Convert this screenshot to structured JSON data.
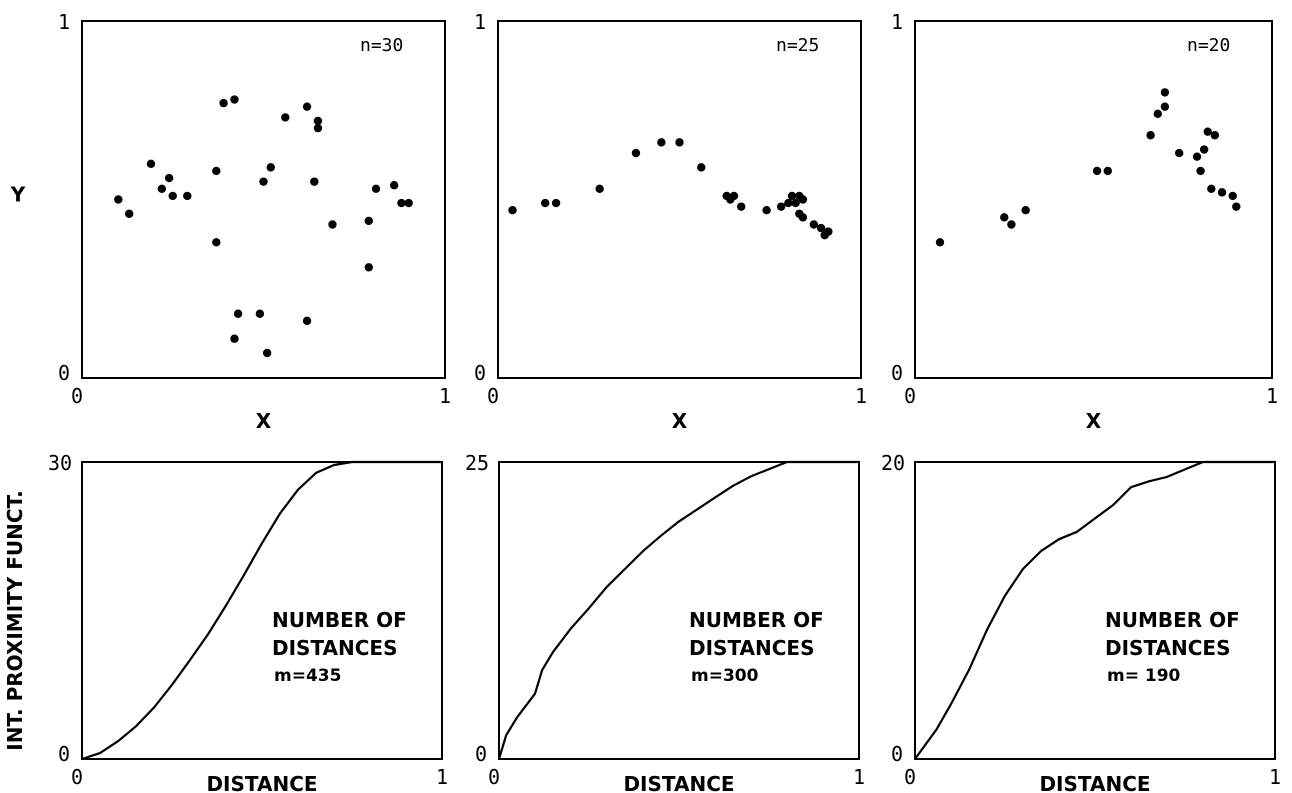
{
  "chart_data": [
    {
      "type": "scatter",
      "annotation": "n=30",
      "xlabel": "X",
      "ylabel": "Y",
      "xlim": [
        0,
        1
      ],
      "ylim": [
        0,
        1
      ],
      "x_ticks": [
        "0",
        "1"
      ],
      "y_ticks": [
        "0",
        "1"
      ],
      "points": [
        [
          0.1,
          0.5
        ],
        [
          0.13,
          0.46
        ],
        [
          0.19,
          0.6
        ],
        [
          0.22,
          0.53
        ],
        [
          0.24,
          0.56
        ],
        [
          0.25,
          0.51
        ],
        [
          0.29,
          0.51
        ],
        [
          0.37,
          0.58
        ],
        [
          0.39,
          0.77
        ],
        [
          0.42,
          0.78
        ],
        [
          0.37,
          0.38
        ],
        [
          0.43,
          0.18
        ],
        [
          0.42,
          0.11
        ],
        [
          0.49,
          0.18
        ],
        [
          0.51,
          0.07
        ],
        [
          0.5,
          0.55
        ],
        [
          0.52,
          0.59
        ],
        [
          0.56,
          0.73
        ],
        [
          0.62,
          0.76
        ],
        [
          0.64,
          0.55
        ],
        [
          0.65,
          0.7
        ],
        [
          0.65,
          0.72
        ],
        [
          0.69,
          0.43
        ],
        [
          0.62,
          0.16
        ],
        [
          0.79,
          0.44
        ],
        [
          0.79,
          0.31
        ],
        [
          0.81,
          0.53
        ],
        [
          0.86,
          0.54
        ],
        [
          0.88,
          0.49
        ],
        [
          0.9,
          0.49
        ]
      ]
    },
    {
      "type": "scatter",
      "annotation": "n=25",
      "xlabel": "X",
      "ylabel": "",
      "xlim": [
        0,
        1
      ],
      "ylim": [
        0,
        1
      ],
      "x_ticks": [
        "0",
        "1"
      ],
      "y_ticks": [
        "0",
        "1"
      ],
      "points": [
        [
          0.04,
          0.47
        ],
        [
          0.13,
          0.49
        ],
        [
          0.16,
          0.49
        ],
        [
          0.28,
          0.53
        ],
        [
          0.38,
          0.63
        ],
        [
          0.45,
          0.66
        ],
        [
          0.5,
          0.66
        ],
        [
          0.56,
          0.59
        ],
        [
          0.63,
          0.51
        ],
        [
          0.64,
          0.5
        ],
        [
          0.65,
          0.51
        ],
        [
          0.67,
          0.48
        ],
        [
          0.74,
          0.47
        ],
        [
          0.78,
          0.48
        ],
        [
          0.8,
          0.49
        ],
        [
          0.81,
          0.51
        ],
        [
          0.82,
          0.49
        ],
        [
          0.83,
          0.51
        ],
        [
          0.84,
          0.5
        ],
        [
          0.83,
          0.46
        ],
        [
          0.84,
          0.45
        ],
        [
          0.87,
          0.43
        ],
        [
          0.89,
          0.42
        ],
        [
          0.9,
          0.4
        ],
        [
          0.91,
          0.41
        ]
      ]
    },
    {
      "type": "scatter",
      "annotation": "n=20",
      "xlabel": "X",
      "ylabel": "",
      "xlim": [
        0,
        1
      ],
      "ylim": [
        0,
        1
      ],
      "x_ticks": [
        "0",
        "1"
      ],
      "y_ticks": [
        "0",
        "1"
      ],
      "points": [
        [
          0.07,
          0.38
        ],
        [
          0.25,
          0.45
        ],
        [
          0.27,
          0.43
        ],
        [
          0.31,
          0.47
        ],
        [
          0.51,
          0.58
        ],
        [
          0.54,
          0.58
        ],
        [
          0.66,
          0.68
        ],
        [
          0.68,
          0.74
        ],
        [
          0.7,
          0.76
        ],
        [
          0.7,
          0.8
        ],
        [
          0.74,
          0.63
        ],
        [
          0.79,
          0.62
        ],
        [
          0.8,
          0.58
        ],
        [
          0.81,
          0.64
        ],
        [
          0.82,
          0.69
        ],
        [
          0.84,
          0.68
        ],
        [
          0.83,
          0.53
        ],
        [
          0.86,
          0.52
        ],
        [
          0.89,
          0.51
        ],
        [
          0.9,
          0.48
        ]
      ]
    },
    {
      "type": "line",
      "xlabel": "DISTANCE",
      "ylabel": "INT. PROXIMITY FUNCT.",
      "xlim": [
        0,
        1
      ],
      "ylim": [
        0,
        30
      ],
      "x_ticks": [
        "0",
        "1"
      ],
      "y_ticks": [
        "0",
        "30"
      ],
      "annotation_lines": [
        "NUMBER OF",
        "DISTANCES"
      ],
      "m_label": "m=435",
      "x": [
        0,
        0.05,
        0.1,
        0.15,
        0.2,
        0.25,
        0.3,
        0.35,
        0.4,
        0.45,
        0.5,
        0.55,
        0.6,
        0.65,
        0.7,
        0.75,
        0.8
      ],
      "y": [
        0,
        0.6,
        1.8,
        3.3,
        5.2,
        7.5,
        10.0,
        12.6,
        15.5,
        18.6,
        21.8,
        24.8,
        27.2,
        28.9,
        29.7,
        30.0,
        30.0
      ]
    },
    {
      "type": "line",
      "xlabel": "DISTANCE",
      "ylabel": "",
      "xlim": [
        0,
        1
      ],
      "ylim": [
        0,
        25
      ],
      "x_ticks": [
        "0",
        "1"
      ],
      "y_ticks": [
        "0",
        "25"
      ],
      "annotation_lines": [
        "NUMBER OF",
        "DISTANCES"
      ],
      "m_label": "m=300",
      "x": [
        0,
        0.02,
        0.05,
        0.1,
        0.12,
        0.15,
        0.2,
        0.25,
        0.3,
        0.35,
        0.4,
        0.45,
        0.5,
        0.55,
        0.6,
        0.65,
        0.7,
        0.75,
        0.8,
        0.85
      ],
      "y": [
        0,
        2.0,
        3.5,
        5.5,
        7.5,
        9.0,
        11.0,
        12.7,
        14.5,
        16.0,
        17.5,
        18.8,
        20.0,
        21.0,
        22.0,
        23.0,
        23.8,
        24.4,
        25.0,
        25.0
      ]
    },
    {
      "type": "line",
      "xlabel": "DISTANCE",
      "ylabel": "",
      "xlim": [
        0,
        1
      ],
      "ylim": [
        0,
        20
      ],
      "x_ticks": [
        "0",
        "1"
      ],
      "y_ticks": [
        "0",
        "20"
      ],
      "annotation_lines": [
        "NUMBER OF",
        "DISTANCES"
      ],
      "m_label": "m= 190",
      "x": [
        0,
        0.03,
        0.06,
        0.1,
        0.15,
        0.2,
        0.25,
        0.3,
        0.35,
        0.4,
        0.45,
        0.5,
        0.55,
        0.6,
        0.65,
        0.7,
        0.75,
        0.8
      ],
      "y": [
        0,
        1.0,
        2.0,
        3.7,
        6.0,
        8.7,
        11.0,
        12.8,
        14.0,
        14.8,
        15.3,
        16.2,
        17.1,
        18.3,
        18.7,
        19.0,
        19.5,
        20.0
      ]
    }
  ]
}
